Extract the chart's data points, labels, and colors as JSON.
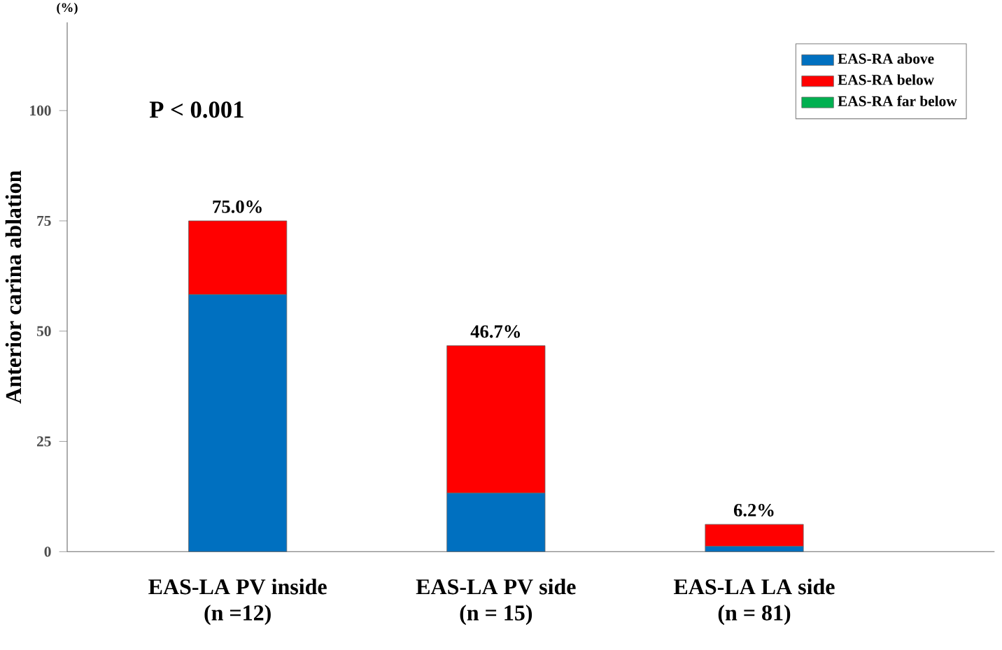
{
  "chart_data": {
    "type": "bar",
    "stacked": true,
    "ylabel": "Anterior carina ablation",
    "categories": [
      "EAS-LA PV inside (n =12)",
      "EAS-LA PV side (n = 15)",
      "EAS-LA LA side (n = 81)"
    ],
    "series": [
      {
        "name": "EAS-RA above",
        "color": "#0070c0",
        "values": [
          58.3,
          13.3,
          1.2
        ]
      },
      {
        "name": "EAS-RA below",
        "color": "#ff0000",
        "values": [
          16.7,
          33.4,
          5.0
        ]
      },
      {
        "name": "EAS-RA far below",
        "color": "#00b050",
        "values": [
          0,
          0,
          0
        ]
      }
    ],
    "ylim": [
      0,
      120
    ],
    "yticks": [
      0,
      25,
      50,
      75,
      100
    ],
    "totals": [
      "75.0%",
      "46.7%",
      "6.2%"
    ],
    "annotations": [
      "P < 0.001",
      "(%)"
    ],
    "legend": "top right",
    "grid": false
  }
}
